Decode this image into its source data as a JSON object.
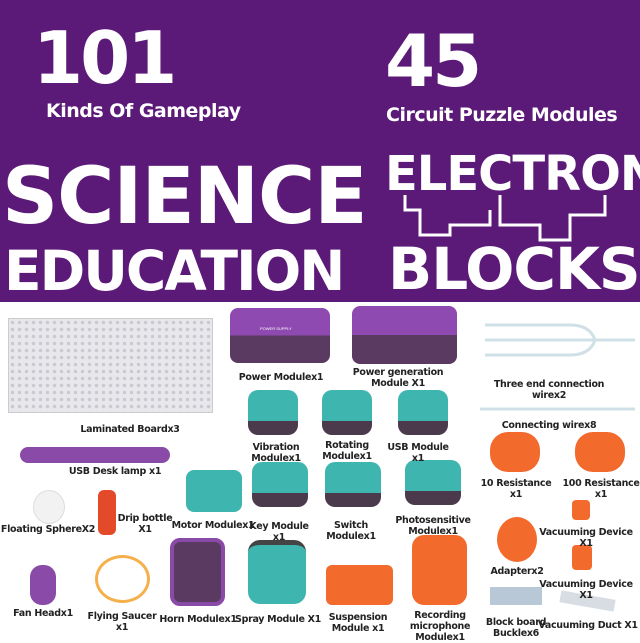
{
  "header": {
    "stat1": {
      "value": "101",
      "label": "Kinds Of Gameplay"
    },
    "stat2": {
      "value": "45",
      "label": "Circuit Puzzle Modules"
    },
    "title_left_1": "SCIENCE",
    "title_left_2": "EDUCATION",
    "title_right_1": "ELECTRON",
    "title_right_2": "BLOCKS",
    "background_color": "#5b1a78"
  },
  "products": [
    {
      "label": "Laminated Boardx3"
    },
    {
      "label": "USB Desk lamp x1"
    },
    {
      "label": "Floating SphereX2"
    },
    {
      "label": "Drip bottle\nX1"
    },
    {
      "label": "Fan Headx1"
    },
    {
      "label": "Flying Saucer\nx1"
    },
    {
      "label": "Horn Modulex1"
    },
    {
      "label": "Spray Module X1"
    },
    {
      "label": "Suspension\nModule x1"
    },
    {
      "label": "Recording\nmicrophone\nModulex1"
    },
    {
      "label": "Power Modulex1"
    },
    {
      "label": "Power generation\nModule X1"
    },
    {
      "label": "Three end connection\nwirex2"
    },
    {
      "label": "Connecting wirex8"
    },
    {
      "label": "Vibration\nModulex1"
    },
    {
      "label": "Rotating\nModulex1"
    },
    {
      "label": "USB Module\nx1"
    },
    {
      "label": "10 Resistance\nx1"
    },
    {
      "label": "100 Resistance\nx1"
    },
    {
      "label": "Motor Modulex1"
    },
    {
      "label": "Key Module\nx1"
    },
    {
      "label": "Switch\nModulex1"
    },
    {
      "label": "Photosensitive\nModulex1"
    },
    {
      "label": "Vacuuming Device\nX1"
    },
    {
      "label": "Adapterx2"
    },
    {
      "label": "Vacuuming Device\nX1"
    },
    {
      "label": "Block board\nBucklex6"
    },
    {
      "label": "Vacuuming Duct X1"
    }
  ],
  "power_module_text": "POWER SUPPLY"
}
